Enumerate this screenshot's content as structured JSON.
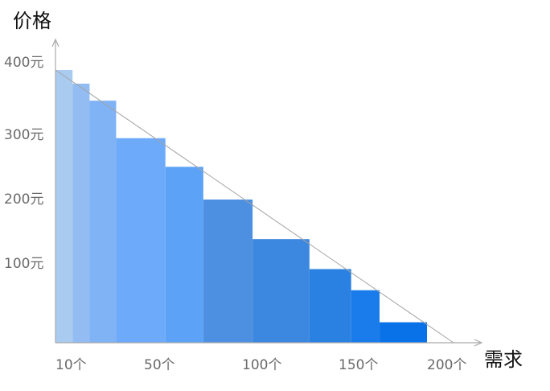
{
  "chart_data": {
    "type": "bar",
    "ylabel": "价格",
    "xlabel": "需求",
    "y_ticks": [
      "400元",
      "300元",
      "200元",
      "100元"
    ],
    "y_tick_values": [
      400,
      300,
      200,
      100
    ],
    "x_ticks": [
      "10个",
      "50个",
      "100个",
      "150个",
      "200个"
    ],
    "x_tick_values": [
      10,
      50,
      100,
      150,
      200
    ],
    "xlim": [
      0,
      210
    ],
    "ylim": [
      0,
      420
    ],
    "bars": [
      {
        "x0": 0,
        "x1": 9,
        "value": 400,
        "color": "#a9cbf0"
      },
      {
        "x0": 9,
        "x1": 18,
        "value": 380,
        "color": "#93bdf2"
      },
      {
        "x0": 18,
        "x1": 32,
        "value": 355,
        "color": "#80b2f6"
      },
      {
        "x0": 32,
        "x1": 58,
        "value": 300,
        "color": "#6eaafa"
      },
      {
        "x0": 58,
        "x1": 78,
        "value": 258,
        "color": "#5ca3f7"
      },
      {
        "x0": 78,
        "x1": 104,
        "value": 210,
        "color": "#4d90e2"
      },
      {
        "x0": 104,
        "x1": 134,
        "value": 152,
        "color": "#3c87df"
      },
      {
        "x0": 134,
        "x1": 156,
        "value": 108,
        "color": "#2a81e2"
      },
      {
        "x0": 156,
        "x1": 171,
        "value": 77,
        "color": "#1a7cea"
      },
      {
        "x0": 171,
        "x1": 196,
        "value": 30,
        "color": "#0a72e8"
      }
    ],
    "demand_line": {
      "from": [
        0,
        400
      ],
      "to": [
        210,
        0
      ]
    },
    "grid": false,
    "legend": "none"
  }
}
